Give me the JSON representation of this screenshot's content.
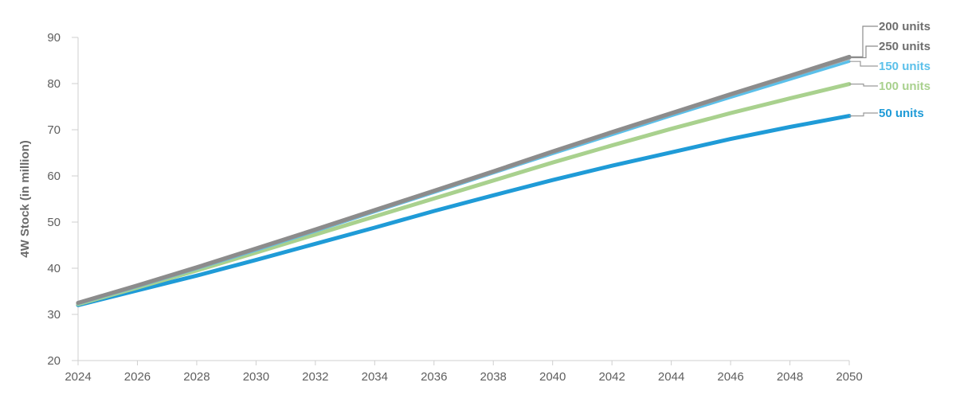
{
  "chart_data": {
    "type": "line",
    "title": "",
    "xlabel": "",
    "ylabel": "4W Stock (in million)",
    "xlim": [
      2024,
      2050
    ],
    "ylim": [
      20,
      90
    ],
    "x_ticks": [
      "2024",
      "2026",
      "2028",
      "2030",
      "2032",
      "2034",
      "2036",
      "2038",
      "2040",
      "2042",
      "2044",
      "2046",
      "2048",
      "2050"
    ],
    "y_ticks": [
      "20",
      "30",
      "40",
      "50",
      "60",
      "70",
      "80",
      "90"
    ],
    "grid": false,
    "legend": "direct labels at right end of lines",
    "x": [
      2024,
      2026,
      2028,
      2030,
      2032,
      2034,
      2036,
      2038,
      2040,
      2042,
      2044,
      2046,
      2048,
      2050
    ],
    "series": [
      {
        "name": "200 units",
        "color": "#8c8c8c",
        "values": [
          32.5,
          36.3,
          40.2,
          44.3,
          48.4,
          52.6,
          56.8,
          61.0,
          65.3,
          69.5,
          73.6,
          77.7,
          81.7,
          85.8
        ]
      },
      {
        "name": "250 units",
        "color": "#9a9a9a",
        "values": [
          32.5,
          36.2,
          40.1,
          44.2,
          48.3,
          52.5,
          56.7,
          60.9,
          65.2,
          69.4,
          73.5,
          77.6,
          81.6,
          85.6
        ]
      },
      {
        "name": "150 units",
        "color": "#5bc0ea",
        "values": [
          32.3,
          36.0,
          39.9,
          43.9,
          48.0,
          52.2,
          56.4,
          60.6,
          64.8,
          68.9,
          73.0,
          77.0,
          80.9,
          84.8
        ]
      },
      {
        "name": "100 units",
        "color": "#a9d18e",
        "values": [
          32.2,
          35.8,
          39.5,
          43.4,
          47.3,
          51.2,
          55.1,
          59.0,
          62.9,
          66.6,
          70.2,
          73.6,
          76.8,
          79.9
        ]
      },
      {
        "name": "50 units",
        "color": "#1f9bd7",
        "values": [
          32.0,
          35.2,
          38.4,
          41.8,
          45.3,
          48.8,
          52.4,
          55.8,
          59.1,
          62.2,
          65.1,
          68.0,
          70.6,
          73.0
        ]
      }
    ]
  }
}
